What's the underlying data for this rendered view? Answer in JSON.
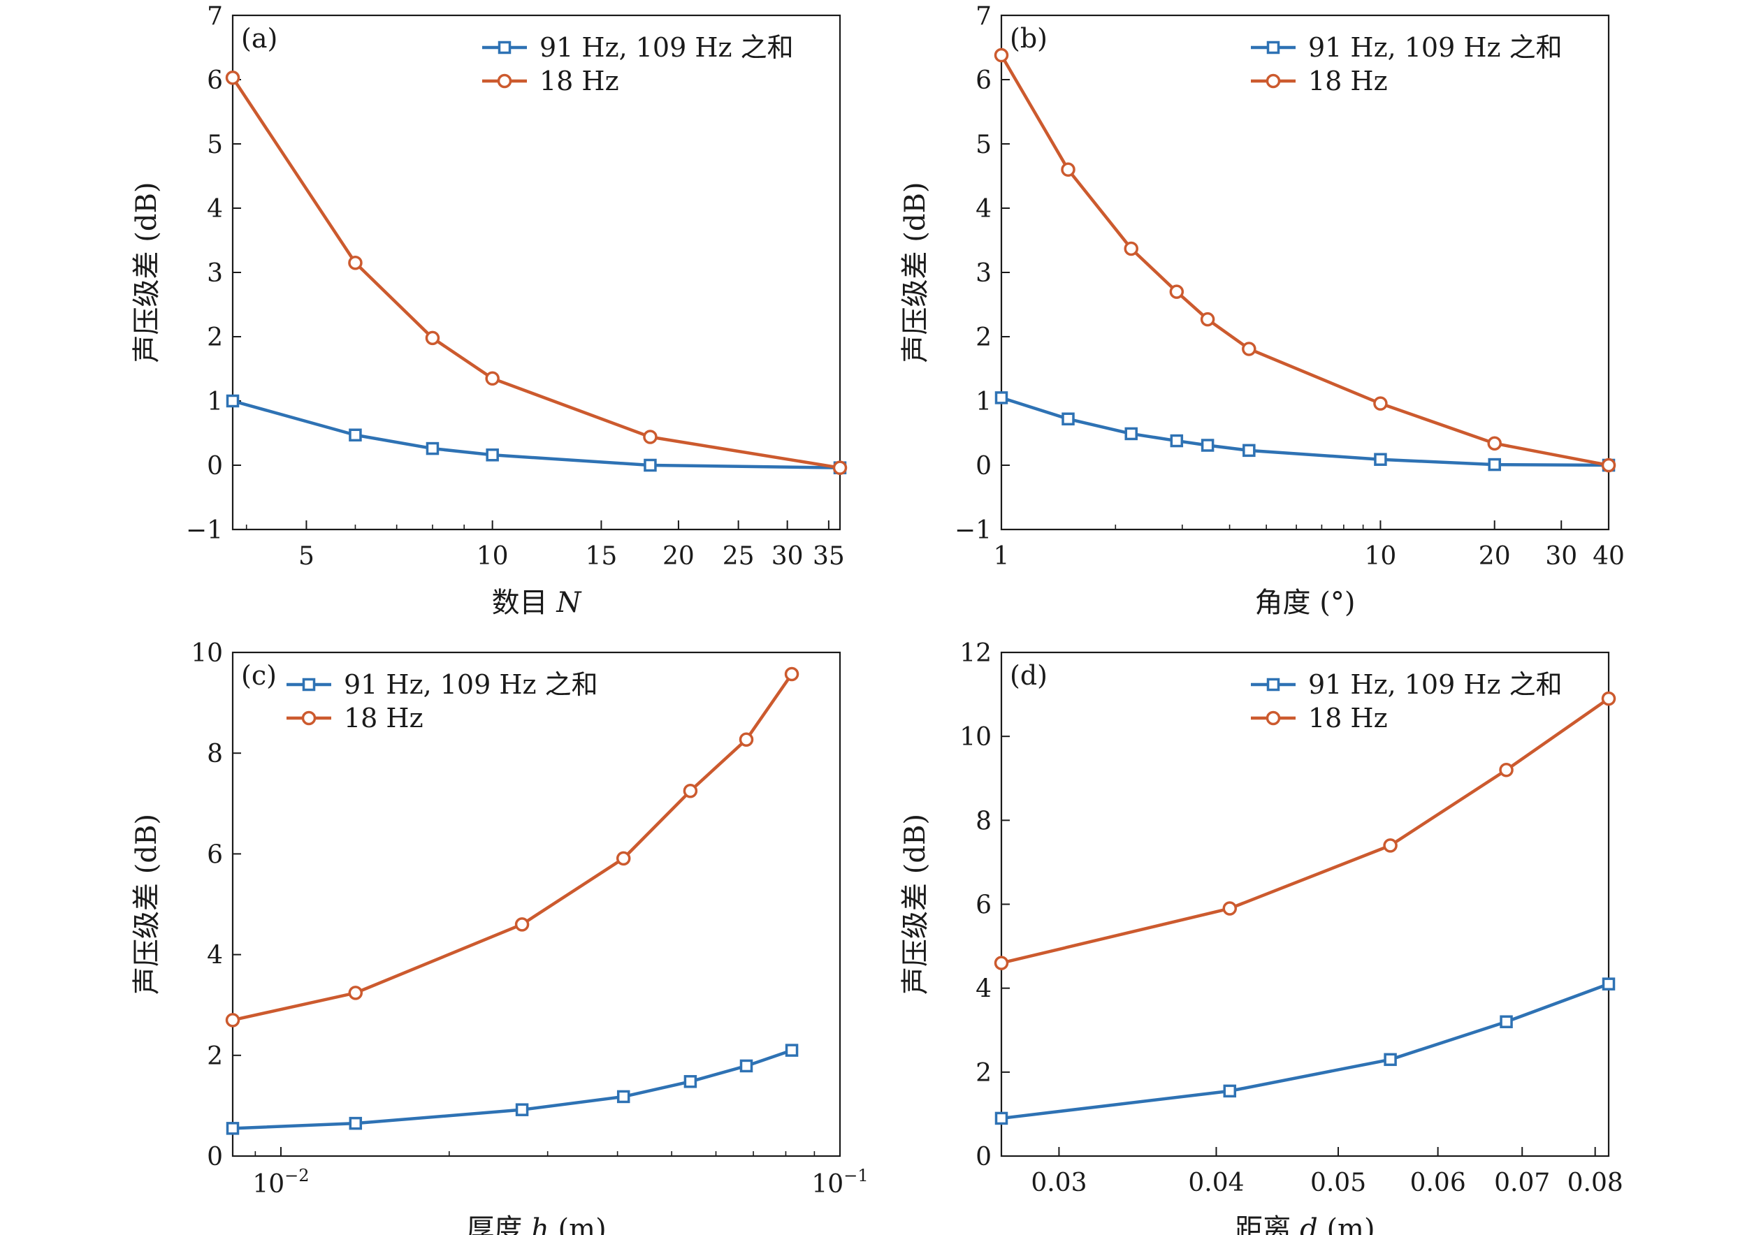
{
  "legend_labels": [
    "91 Hz, 109 Hz 之和",
    "18 Hz"
  ],
  "series_colors": {
    "sum": "#2e72b4",
    "18hz": "#cc5a2e"
  },
  "chart_data": [
    {
      "panel_label": "(a)",
      "type": "line",
      "xscale": "log",
      "xlim": [
        3.8,
        36.5
      ],
      "xticks": [
        5,
        10,
        15,
        20,
        25,
        30,
        35
      ],
      "xtick_labels": [
        "5",
        "10",
        "15",
        "20",
        "25",
        "30",
        "35"
      ],
      "xlabel": "数目 ",
      "xlabel_var": "N",
      "xlabel_unit": "",
      "ylim": [
        -1,
        7
      ],
      "yticks": [
        -1,
        0,
        1,
        2,
        3,
        4,
        5,
        6,
        7
      ],
      "ytick_labels": [
        "−1",
        "0",
        "1",
        "2",
        "3",
        "4",
        "5",
        "6",
        "7"
      ],
      "ylabel": "声压级差 (dB)",
      "legend_position": "top-right",
      "series": [
        {
          "name": "91 Hz, 109 Hz 之和",
          "marker": "square",
          "color": "#2e72b4",
          "x": [
            3.8,
            6,
            8,
            10,
            18,
            36.5
          ],
          "y": [
            1.0,
            0.47,
            0.26,
            0.16,
            0.0,
            -0.04
          ]
        },
        {
          "name": "18 Hz",
          "marker": "circle",
          "color": "#cc5a2e",
          "x": [
            3.8,
            6,
            8,
            10,
            18,
            36.5
          ],
          "y": [
            6.03,
            3.15,
            1.98,
            1.35,
            0.44,
            -0.04
          ]
        }
      ]
    },
    {
      "panel_label": "(b)",
      "type": "line",
      "xscale": "log",
      "xlim": [
        1,
        40
      ],
      "xticks": [
        1,
        10,
        20,
        30,
        40
      ],
      "xtick_labels": [
        "1",
        "10",
        "20",
        "30",
        "40"
      ],
      "xlabel": "角度 (°)",
      "xlabel_var": "",
      "xlabel_unit": "",
      "ylim": [
        -1,
        7
      ],
      "yticks": [
        -1,
        0,
        1,
        2,
        3,
        4,
        5,
        6,
        7
      ],
      "ytick_labels": [
        "−1",
        "0",
        "1",
        "2",
        "3",
        "4",
        "5",
        "6",
        "7"
      ],
      "ylabel": "声压级差 (dB)",
      "legend_position": "top-right",
      "series": [
        {
          "name": "91 Hz, 109 Hz 之和",
          "marker": "square",
          "color": "#2e72b4",
          "x": [
            1,
            1.5,
            2.2,
            2.9,
            3.5,
            4.5,
            10,
            20,
            40
          ],
          "y": [
            1.05,
            0.72,
            0.49,
            0.38,
            0.31,
            0.23,
            0.09,
            0.01,
            0.0
          ]
        },
        {
          "name": "18 Hz",
          "marker": "circle",
          "color": "#cc5a2e",
          "x": [
            1,
            1.5,
            2.2,
            2.9,
            3.5,
            4.5,
            10,
            20,
            40
          ],
          "y": [
            6.38,
            4.6,
            3.37,
            2.7,
            2.27,
            1.81,
            0.96,
            0.34,
            0.0
          ]
        }
      ]
    },
    {
      "panel_label": "(c)",
      "type": "line",
      "xscale": "log",
      "xlim": [
        0.0082,
        0.1
      ],
      "xticks": [
        0.01,
        0.1
      ],
      "xtick_labels": [
        "10",
        "10"
      ],
      "xtick_exponents": [
        "−2",
        "−1"
      ],
      "xlabel": "厚度 ",
      "xlabel_var": "h",
      "xlabel_unit": " (m)",
      "ylim": [
        0,
        10
      ],
      "yticks": [
        0,
        2,
        4,
        6,
        8,
        10
      ],
      "ytick_labels": [
        "0",
        "2",
        "4",
        "6",
        "8",
        "10"
      ],
      "ylabel": "声压级差 (dB)",
      "legend_position": "top-left",
      "series": [
        {
          "name": "91 Hz, 109 Hz 之和",
          "marker": "square",
          "color": "#2e72b4",
          "x": [
            0.0082,
            0.0136,
            0.027,
            0.041,
            0.054,
            0.068,
            0.082
          ],
          "y": [
            0.55,
            0.65,
            0.92,
            1.18,
            1.48,
            1.79,
            2.1
          ]
        },
        {
          "name": "18 Hz",
          "marker": "circle",
          "color": "#cc5a2e",
          "x": [
            0.0082,
            0.0136,
            0.027,
            0.041,
            0.054,
            0.068,
            0.082
          ],
          "y": [
            2.7,
            3.24,
            4.6,
            5.91,
            7.25,
            8.27,
            9.57
          ]
        }
      ]
    },
    {
      "panel_label": "(d)",
      "type": "line",
      "xscale": "log",
      "xlim": [
        0.027,
        0.082
      ],
      "xticks": [
        0.03,
        0.04,
        0.05,
        0.06,
        0.07,
        0.08
      ],
      "xtick_labels": [
        "0.03",
        "0.04",
        "0.05",
        "0.06",
        "0.07",
        "0.08"
      ],
      "xlabel": "距离 ",
      "xlabel_var": "d",
      "xlabel_unit": " (m)",
      "ylim": [
        0,
        12
      ],
      "yticks": [
        0,
        2,
        4,
        6,
        8,
        10,
        12
      ],
      "ytick_labels": [
        "0",
        "2",
        "4",
        "6",
        "8",
        "10",
        "12"
      ],
      "ylabel": "声压级差 (dB)",
      "legend_position": "top-right",
      "series": [
        {
          "name": "91 Hz, 109 Hz 之和",
          "marker": "square",
          "color": "#2e72b4",
          "x": [
            0.027,
            0.041,
            0.055,
            0.068,
            0.082
          ],
          "y": [
            0.9,
            1.55,
            2.3,
            3.2,
            4.1
          ]
        },
        {
          "name": "18 Hz",
          "marker": "circle",
          "color": "#cc5a2e",
          "x": [
            0.027,
            0.041,
            0.055,
            0.068,
            0.082
          ],
          "y": [
            4.6,
            5.9,
            7.4,
            9.2,
            10.9
          ]
        }
      ]
    }
  ]
}
